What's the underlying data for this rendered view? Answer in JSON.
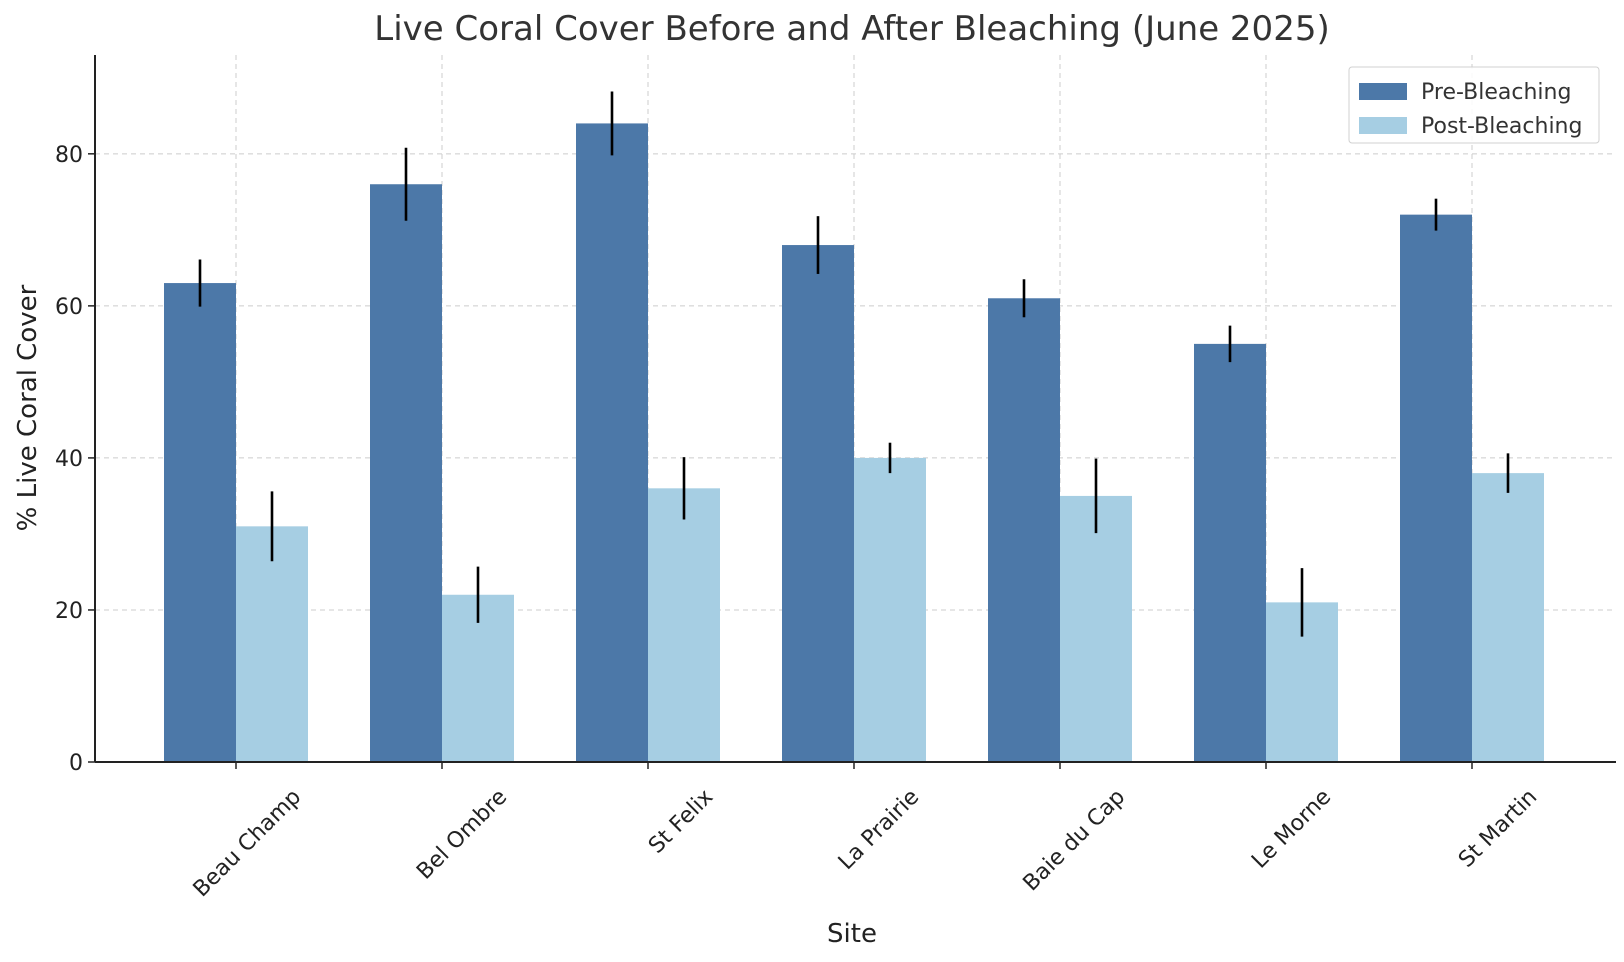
{
  "chart_data": {
    "type": "bar",
    "title": "Live Coral Cover Before and After Bleaching (June 2025)",
    "xlabel": "Site",
    "ylabel": "% Live Coral Cover",
    "categories": [
      "Beau Champ",
      "Bel Ombre",
      "St Felix",
      "La Prairie",
      "Baie du Cap",
      "Le Morne",
      "St Martin"
    ],
    "ylim": [
      0,
      93
    ],
    "yticks": [
      0,
      20,
      40,
      60,
      80
    ],
    "grid": true,
    "legend_position": "top-right",
    "series": [
      {
        "name": "Pre-Bleaching",
        "color": "#4c78a8",
        "values": [
          63,
          76,
          84,
          68,
          61,
          55,
          72
        ],
        "errors": [
          3.1,
          4.8,
          4.2,
          3.8,
          2.5,
          2.4,
          2.1
        ]
      },
      {
        "name": "Post-Bleaching",
        "color": "#a6cee3",
        "values": [
          31,
          22,
          36,
          40,
          35,
          21,
          38
        ],
        "errors": [
          4.6,
          3.7,
          4.1,
          2.0,
          4.9,
          4.5,
          2.6
        ]
      }
    ]
  }
}
